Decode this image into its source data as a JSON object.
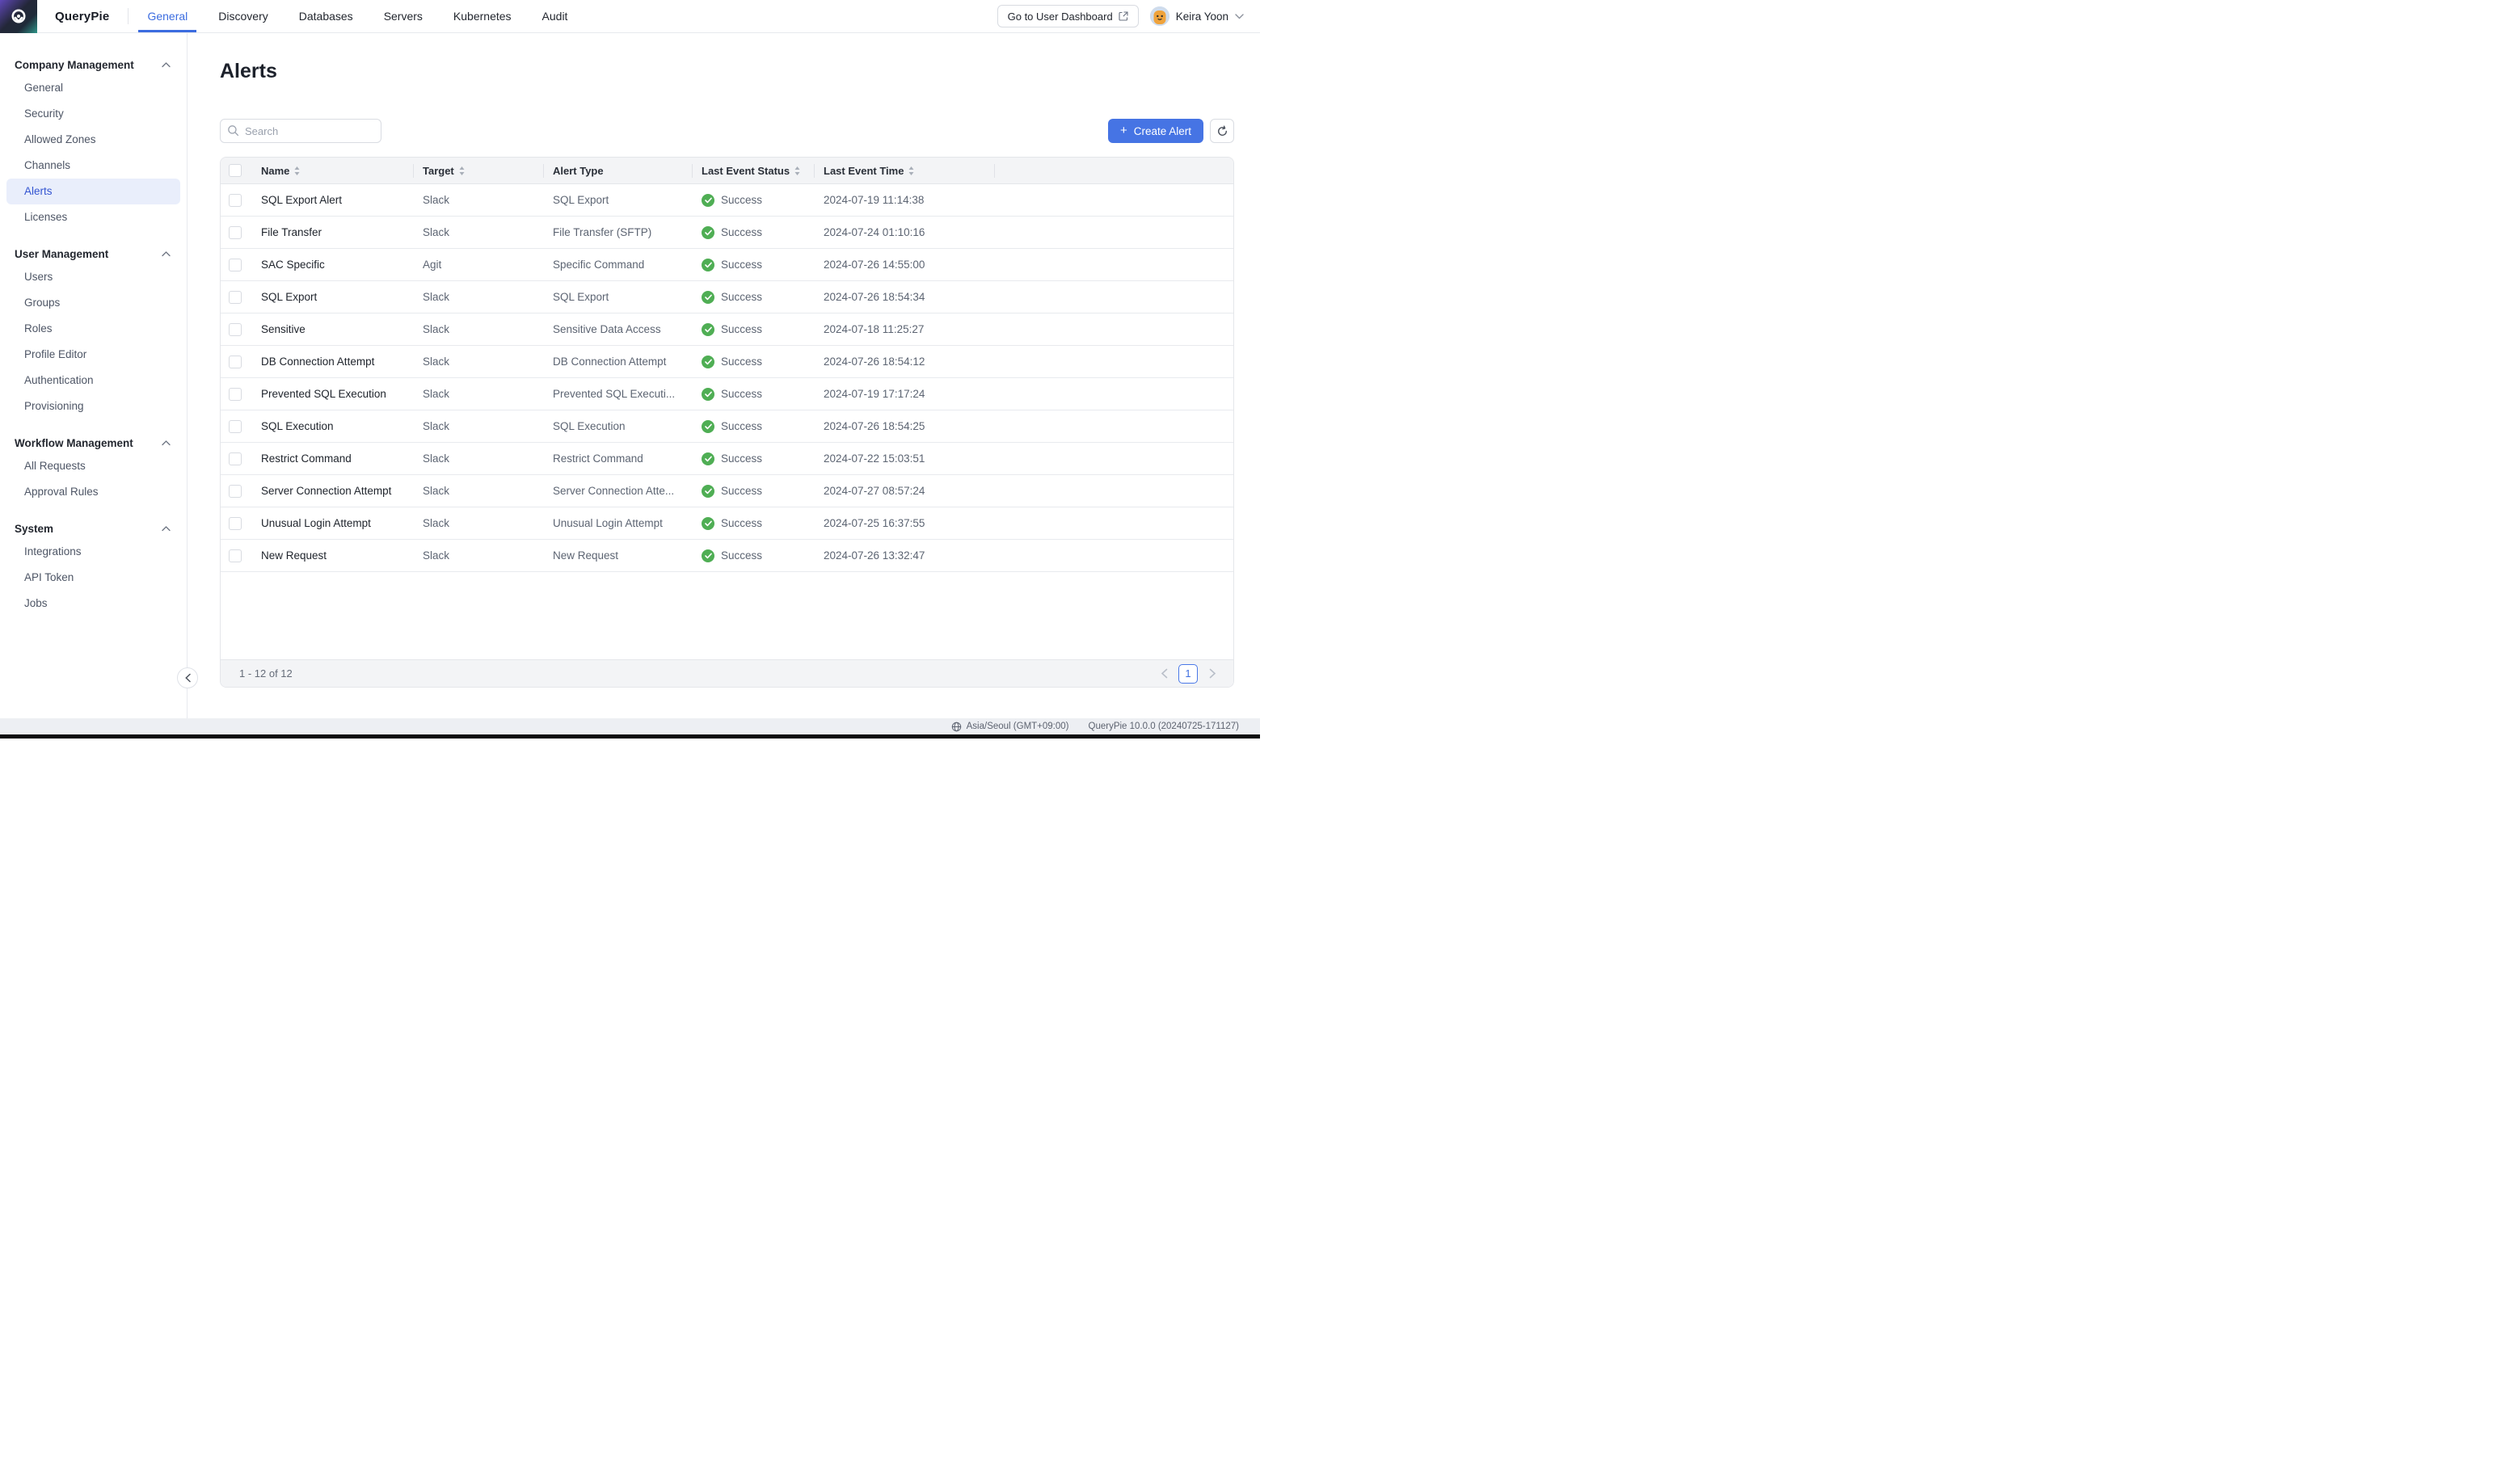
{
  "nav": {
    "brand": "QueryPie",
    "tabs": [
      {
        "label": "General",
        "active": true
      },
      {
        "label": "Discovery",
        "active": false
      },
      {
        "label": "Databases",
        "active": false
      },
      {
        "label": "Servers",
        "active": false
      },
      {
        "label": "Kubernetes",
        "active": false
      },
      {
        "label": "Audit",
        "active": false
      }
    ],
    "dashboard_button": "Go to User Dashboard",
    "dashboard_button_icon": "external-link-icon",
    "user_name": "Keira Yoon",
    "user_menu_icon": "chevron-down-icon"
  },
  "sidebar": {
    "sections": [
      {
        "title": "Company Management",
        "collapse_icon": "chevron-up-icon",
        "items": [
          {
            "label": "General",
            "active": false
          },
          {
            "label": "Security",
            "active": false
          },
          {
            "label": "Allowed Zones",
            "active": false
          },
          {
            "label": "Channels",
            "active": false
          },
          {
            "label": "Alerts",
            "active": true
          },
          {
            "label": "Licenses",
            "active": false
          }
        ]
      },
      {
        "title": "User Management",
        "collapse_icon": "chevron-up-icon",
        "items": [
          {
            "label": "Users",
            "active": false
          },
          {
            "label": "Groups",
            "active": false
          },
          {
            "label": "Roles",
            "active": false
          },
          {
            "label": "Profile Editor",
            "active": false
          },
          {
            "label": "Authentication",
            "active": false
          },
          {
            "label": "Provisioning",
            "active": false
          }
        ]
      },
      {
        "title": "Workflow Management",
        "collapse_icon": "chevron-up-icon",
        "items": [
          {
            "label": "All Requests",
            "active": false
          },
          {
            "label": "Approval Rules",
            "active": false
          }
        ]
      },
      {
        "title": "System",
        "collapse_icon": "chevron-up-icon",
        "items": [
          {
            "label": "Integrations",
            "active": false
          },
          {
            "label": "API Token",
            "active": false
          },
          {
            "label": "Jobs",
            "active": false
          }
        ]
      }
    ]
  },
  "main": {
    "title": "Alerts",
    "search_placeholder": "Search",
    "search_icon": "search-icon",
    "create_button": "Create Alert",
    "create_button_plus": "+",
    "refresh_icon": "refresh-icon",
    "table": {
      "columns": [
        {
          "label": "Name",
          "sortable": true
        },
        {
          "label": "Target",
          "sortable": true
        },
        {
          "label": "Alert Type",
          "sortable": false
        },
        {
          "label": "Last Event Status",
          "sortable": true
        },
        {
          "label": "Last Event Time",
          "sortable": true
        }
      ],
      "rows": [
        {
          "name": "SQL Export Alert",
          "target": "Slack",
          "alert_type": "SQL Export",
          "status": "Success",
          "time": "2024-07-19 11:14:38"
        },
        {
          "name": "File Transfer",
          "target": "Slack",
          "alert_type": "File Transfer (SFTP)",
          "status": "Success",
          "time": "2024-07-24 01:10:16"
        },
        {
          "name": "SAC Specific",
          "target": "Agit",
          "alert_type": "Specific Command",
          "status": "Success",
          "time": "2024-07-26 14:55:00"
        },
        {
          "name": "SQL Export",
          "target": "Slack",
          "alert_type": "SQL Export",
          "status": "Success",
          "time": "2024-07-26 18:54:34"
        },
        {
          "name": "Sensitive",
          "target": "Slack",
          "alert_type": "Sensitive Data Access",
          "status": "Success",
          "time": "2024-07-18 11:25:27"
        },
        {
          "name": "DB Connection Attempt",
          "target": "Slack",
          "alert_type": "DB Connection Attempt",
          "status": "Success",
          "time": "2024-07-26 18:54:12"
        },
        {
          "name": "Prevented SQL Execution",
          "target": "Slack",
          "alert_type": "Prevented SQL Executi...",
          "status": "Success",
          "time": "2024-07-19 17:17:24"
        },
        {
          "name": "SQL Execution",
          "target": "Slack",
          "alert_type": "SQL Execution",
          "status": "Success",
          "time": "2024-07-26 18:54:25"
        },
        {
          "name": "Restrict Command",
          "target": "Slack",
          "alert_type": "Restrict Command",
          "status": "Success",
          "time": "2024-07-22 15:03:51"
        },
        {
          "name": "Server Connection Attempt",
          "target": "Slack",
          "alert_type": "Server Connection Atte...",
          "status": "Success",
          "time": "2024-07-27 08:57:24"
        },
        {
          "name": "Unusual Login Attempt",
          "target": "Slack",
          "alert_type": "Unusual Login Attempt",
          "status": "Success",
          "time": "2024-07-25 16:37:55"
        },
        {
          "name": "New Request",
          "target": "Slack",
          "alert_type": "New Request",
          "status": "Success",
          "time": "2024-07-26 13:32:47"
        }
      ],
      "status_icon": "check-circle-icon",
      "footer": {
        "range_text": "1 - 12 of 12",
        "page": "1",
        "prev_icon": "chevron-left-icon",
        "next_icon": "chevron-right-icon"
      }
    }
  },
  "statusbar": {
    "timezone_icon": "globe-icon",
    "timezone": "Asia/Seoul (GMT+09:00)",
    "version": "QueryPie 10.0.0 (20240725-171127)"
  },
  "colors": {
    "accent_blue": "#3b6ce0",
    "button_blue": "#4674e4",
    "active_item_bg": "#e9eefb",
    "success_green": "#4fae54",
    "table_header_bg": "#f3f4f6",
    "statusbar_bg": "#edeff3"
  }
}
